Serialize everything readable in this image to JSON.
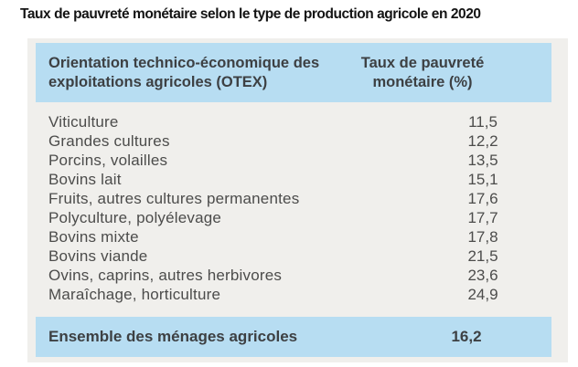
{
  "title": "Taux de pauvreté monétaire selon le type de production agricole en 2020",
  "table": {
    "header": {
      "col1": "Orientation technico-économique des exploitations agricoles (OTEX)",
      "col2": "Taux de pauvreté monétaire (%)"
    },
    "rows": [
      {
        "label": "Viticulture",
        "value": "11,5"
      },
      {
        "label": "Grandes cultures",
        "value": "12,2"
      },
      {
        "label": "Porcins, volailles",
        "value": "13,5"
      },
      {
        "label": "Bovins lait",
        "value": "15,1"
      },
      {
        "label": "Fruits, autres cultures permanentes",
        "value": "17,6"
      },
      {
        "label": "Polyculture, polyélevage",
        "value": "17,7"
      },
      {
        "label": "Bovins mixte",
        "value": "17,8"
      },
      {
        "label": "Bovins viande",
        "value": "21,5"
      },
      {
        "label": "Ovins, caprins, autres herbivores",
        "value": "23,6"
      },
      {
        "label": "Maraîchage, horticulture",
        "value": "24,9"
      }
    ],
    "footer": {
      "label": "Ensemble des ménages agricoles",
      "value": "16,2"
    }
  },
  "colors": {
    "band_blue": "#b7ddf2",
    "panel_gray": "#f0efec",
    "title_text": "#141414",
    "header_text": "#3d4043",
    "row_text": "#4c4c4b"
  }
}
